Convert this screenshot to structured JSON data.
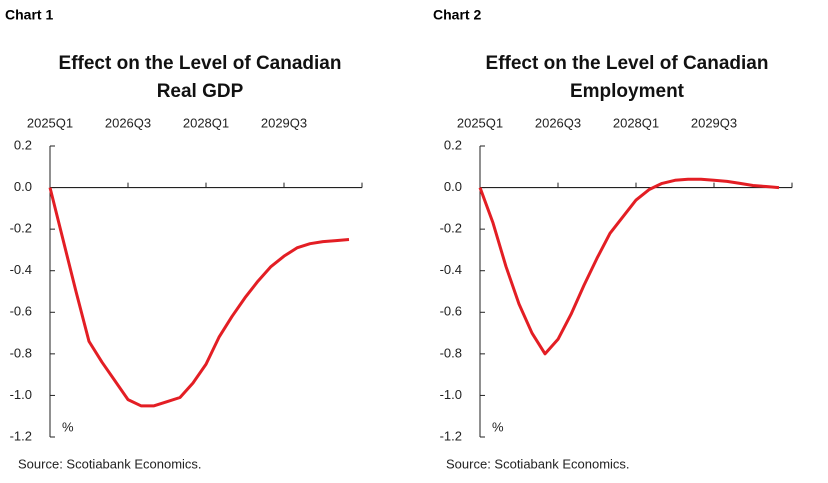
{
  "chart_data": [
    {
      "type": "line",
      "label": "Chart 1",
      "title": [
        "Effect on the Level of Canadian",
        "Real GDP"
      ],
      "categories": [
        "2025Q1",
        null,
        null,
        null,
        null,
        null,
        "2026Q3",
        null,
        null,
        null,
        null,
        null,
        "2028Q1",
        null,
        null,
        null,
        null,
        null,
        "2029Q3",
        null,
        null,
        null,
        null,
        null
      ],
      "series": [
        {
          "color": "#e31e24",
          "values": [
            0,
            -0.25,
            -0.5,
            -0.74,
            -0.84,
            -0.93,
            -1.02,
            -1.05,
            -1.05,
            -1.03,
            -1.01,
            -0.94,
            -0.85,
            -0.72,
            -0.62,
            -0.53,
            -0.45,
            -0.38,
            -0.33,
            -0.29,
            -0.27,
            -0.26,
            -0.255,
            -0.25
          ]
        }
      ],
      "ylim": [
        -1.2,
        0.2
      ],
      "yticks": [
        0.2,
        {
          "value": 0,
          "label": "0.0"
        },
        -0.2,
        -0.4,
        -0.6,
        -0.8,
        {
          "value": -1,
          "label": "-1.0"
        },
        -1.2
      ],
      "unit_label": "%",
      "source": "Source: Scotiabank Economics."
    },
    {
      "type": "line",
      "label": "Chart 2",
      "title": [
        "Effect on the Level of Canadian",
        "Employment"
      ],
      "categories": [
        "2025Q1",
        null,
        null,
        null,
        null,
        null,
        "2026Q3",
        null,
        null,
        null,
        null,
        null,
        "2028Q1",
        null,
        null,
        null,
        null,
        null,
        "2029Q3",
        null,
        null,
        null,
        null,
        null
      ],
      "series": [
        {
          "color": "#e31e24",
          "values": [
            0,
            -0.17,
            -0.38,
            -0.56,
            -0.7,
            -0.8,
            -0.73,
            -0.61,
            -0.47,
            -0.34,
            -0.22,
            -0.14,
            -0.06,
            -0.01,
            0.02,
            0.035,
            0.04,
            0.04,
            0.035,
            0.03,
            0.02,
            0.01,
            0.005,
            0
          ]
        }
      ],
      "ylim": [
        -1.2,
        0.2
      ],
      "yticks": [
        0.2,
        {
          "value": 0,
          "label": "0.0"
        },
        -0.2,
        -0.4,
        -0.6,
        -0.8,
        {
          "value": -1,
          "label": "-1.0"
        },
        -1.2
      ],
      "unit_label": "%",
      "source": "Source: Scotiabank Economics."
    }
  ]
}
